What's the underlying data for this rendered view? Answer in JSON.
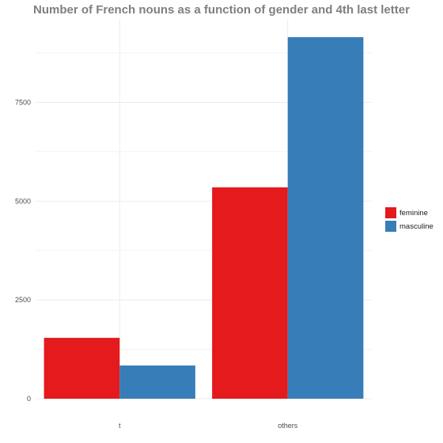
{
  "chart_data": {
    "type": "bar",
    "title": "Number of French nouns as a function of gender and 4th last letter",
    "xlabel": "",
    "ylabel": "",
    "categories": [
      "t",
      "others"
    ],
    "series": [
      {
        "name": "feminine",
        "values": [
          1540,
          5350
        ],
        "color": "#E41A1C"
      },
      {
        "name": "masculine",
        "values": [
          840,
          9150
        ],
        "color": "#377EB8"
      }
    ],
    "ylim": [
      0,
      9610
    ],
    "yticks": [
      0,
      2500,
      5000,
      7500
    ],
    "ytick_labels": [
      "0",
      "2500",
      "5000",
      "7500"
    ],
    "grid": true,
    "legend_position": "right"
  }
}
